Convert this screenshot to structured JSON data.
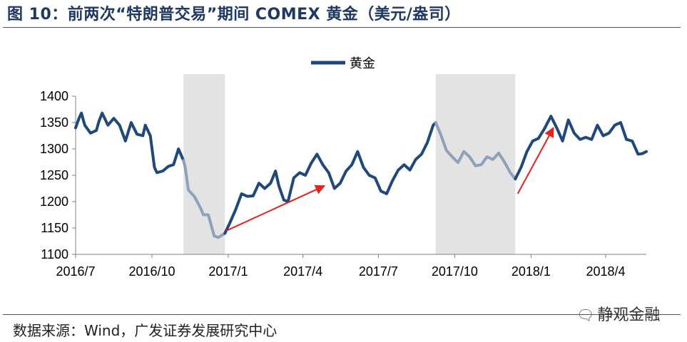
{
  "header": {
    "title": "图 10：前两次“特朗普交易”期间 COMEX 黄金（美元/盎司）"
  },
  "footer": {
    "source": "数据来源：Wind，广发证券发展研究中心",
    "watermark": "静观金融"
  },
  "icons": {
    "watermark_icon": "wechat-bubble-icon"
  },
  "colors": {
    "line": "#1f497d",
    "line_light": "#8fa1b8",
    "shade": "#e3e3e3",
    "arrow": "#e8211c"
  },
  "chart_data": {
    "type": "line",
    "legend": {
      "label": "黄金",
      "position": "top-center"
    },
    "ylim": [
      1100,
      1400
    ],
    "yticks": [
      1100,
      1150,
      1200,
      1250,
      1300,
      1350,
      1400
    ],
    "xticks": [
      {
        "label": "2016/7",
        "date": "2016-07-01"
      },
      {
        "label": "2016/10",
        "date": "2016-10-01"
      },
      {
        "label": "2017/1",
        "date": "2017-01-01"
      },
      {
        "label": "2017/4",
        "date": "2017-04-01"
      },
      {
        "label": "2017/7",
        "date": "2017-07-01"
      },
      {
        "label": "2017/10",
        "date": "2017-10-01"
      },
      {
        "label": "2018/1",
        "date": "2018-01-01"
      },
      {
        "label": "2018/4",
        "date": "2018-04-01"
      }
    ],
    "xlim": [
      "2016-07-01",
      "2018-05-20"
    ],
    "shaded_periods": [
      [
        "2016-11-08",
        "2016-12-28"
      ],
      [
        "2017-09-08",
        "2017-12-13"
      ]
    ],
    "series": [
      {
        "name": "黄金",
        "points": [
          [
            "2016-07-01",
            1340
          ],
          [
            "2016-07-05",
            1358
          ],
          [
            "2016-07-08",
            1368
          ],
          [
            "2016-07-12",
            1345
          ],
          [
            "2016-07-19",
            1330
          ],
          [
            "2016-07-26",
            1335
          ],
          [
            "2016-07-29",
            1352
          ],
          [
            "2016-08-02",
            1368
          ],
          [
            "2016-08-09",
            1345
          ],
          [
            "2016-08-16",
            1358
          ],
          [
            "2016-08-23",
            1345
          ],
          [
            "2016-08-30",
            1315
          ],
          [
            "2016-09-06",
            1350
          ],
          [
            "2016-09-13",
            1328
          ],
          [
            "2016-09-20",
            1325
          ],
          [
            "2016-09-23",
            1345
          ],
          [
            "2016-09-29",
            1325
          ],
          [
            "2016-10-04",
            1265
          ],
          [
            "2016-10-07",
            1255
          ],
          [
            "2016-10-14",
            1258
          ],
          [
            "2016-10-21",
            1267
          ],
          [
            "2016-10-27",
            1270
          ],
          [
            "2016-11-02",
            1300
          ],
          [
            "2016-11-08",
            1278
          ],
          [
            "2016-11-10",
            1266
          ],
          [
            "2016-11-14",
            1222
          ],
          [
            "2016-11-21",
            1210
          ],
          [
            "2016-11-28",
            1190
          ],
          [
            "2016-12-02",
            1175
          ],
          [
            "2016-12-08",
            1175
          ],
          [
            "2016-12-15",
            1135
          ],
          [
            "2016-12-20",
            1132
          ],
          [
            "2016-12-28",
            1140
          ],
          [
            "2017-01-03",
            1160
          ],
          [
            "2017-01-10",
            1185
          ],
          [
            "2017-01-17",
            1215
          ],
          [
            "2017-01-24",
            1210
          ],
          [
            "2017-01-31",
            1211
          ],
          [
            "2017-02-07",
            1235
          ],
          [
            "2017-02-14",
            1225
          ],
          [
            "2017-02-21",
            1235
          ],
          [
            "2017-02-27",
            1258
          ],
          [
            "2017-03-03",
            1230
          ],
          [
            "2017-03-09",
            1203
          ],
          [
            "2017-03-14",
            1200
          ],
          [
            "2017-03-21",
            1245
          ],
          [
            "2017-03-28",
            1255
          ],
          [
            "2017-04-04",
            1250
          ],
          [
            "2017-04-11",
            1273
          ],
          [
            "2017-04-18",
            1290
          ],
          [
            "2017-04-25",
            1270
          ],
          [
            "2017-05-02",
            1255
          ],
          [
            "2017-05-09",
            1225
          ],
          [
            "2017-05-16",
            1235
          ],
          [
            "2017-05-23",
            1258
          ],
          [
            "2017-05-30",
            1270
          ],
          [
            "2017-06-06",
            1295
          ],
          [
            "2017-06-13",
            1265
          ],
          [
            "2017-06-20",
            1250
          ],
          [
            "2017-06-27",
            1245
          ],
          [
            "2017-07-04",
            1220
          ],
          [
            "2017-07-11",
            1215
          ],
          [
            "2017-07-18",
            1240
          ],
          [
            "2017-07-25",
            1260
          ],
          [
            "2017-08-01",
            1270
          ],
          [
            "2017-08-08",
            1260
          ],
          [
            "2017-08-15",
            1280
          ],
          [
            "2017-08-22",
            1290
          ],
          [
            "2017-08-29",
            1312
          ],
          [
            "2017-09-05",
            1345
          ],
          [
            "2017-09-08",
            1350
          ],
          [
            "2017-09-14",
            1328
          ],
          [
            "2017-09-21",
            1297
          ],
          [
            "2017-09-28",
            1285
          ],
          [
            "2017-10-05",
            1274
          ],
          [
            "2017-10-12",
            1295
          ],
          [
            "2017-10-19",
            1285
          ],
          [
            "2017-10-26",
            1268
          ],
          [
            "2017-11-02",
            1270
          ],
          [
            "2017-11-09",
            1285
          ],
          [
            "2017-11-16",
            1280
          ],
          [
            "2017-11-23",
            1292
          ],
          [
            "2017-11-30",
            1275
          ],
          [
            "2017-12-07",
            1255
          ],
          [
            "2017-12-13",
            1243
          ],
          [
            "2017-12-20",
            1265
          ],
          [
            "2017-12-27",
            1295
          ],
          [
            "2018-01-03",
            1315
          ],
          [
            "2018-01-10",
            1320
          ],
          [
            "2018-01-17",
            1338
          ],
          [
            "2018-01-25",
            1362
          ],
          [
            "2018-02-01",
            1340
          ],
          [
            "2018-02-08",
            1315
          ],
          [
            "2018-02-15",
            1355
          ],
          [
            "2018-02-22",
            1330
          ],
          [
            "2018-03-01",
            1318
          ],
          [
            "2018-03-08",
            1322
          ],
          [
            "2018-03-15",
            1318
          ],
          [
            "2018-03-22",
            1345
          ],
          [
            "2018-03-29",
            1325
          ],
          [
            "2018-04-05",
            1330
          ],
          [
            "2018-04-12",
            1345
          ],
          [
            "2018-04-19",
            1350
          ],
          [
            "2018-04-26",
            1318
          ],
          [
            "2018-05-03",
            1315
          ],
          [
            "2018-05-10",
            1290
          ],
          [
            "2018-05-15",
            1291
          ],
          [
            "2018-05-20",
            1295
          ]
        ]
      }
    ],
    "annotations": [
      {
        "type": "arrow",
        "from": [
          "2016-12-30",
          1145
        ],
        "to": [
          "2017-04-27",
          1230
        ]
      },
      {
        "type": "arrow",
        "from": [
          "2017-12-16",
          1215
        ],
        "to": [
          "2018-01-28",
          1340
        ]
      }
    ]
  }
}
